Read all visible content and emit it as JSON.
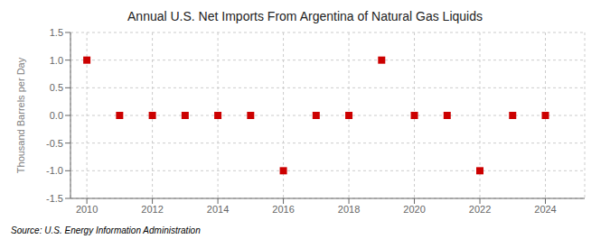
{
  "chart_data": {
    "type": "scatter",
    "title": "Annual U.S. Net Imports From Argentina of Natural Gas Liquids",
    "ylabel": "Thousand Barrels per Day",
    "annotation": "Source: U.S. Energy Information Administration",
    "x": [
      2010,
      2011,
      2012,
      2013,
      2014,
      2015,
      2016,
      2017,
      2018,
      2019,
      2020,
      2021,
      2022,
      2023,
      2024
    ],
    "values": [
      1.0,
      0.0,
      0.0,
      0.0,
      0.0,
      0.0,
      -1.0,
      0.0,
      0.0,
      1.0,
      0.0,
      0.0,
      -1.0,
      0.0,
      0.0
    ],
    "color": "#cc0000",
    "marker": "square",
    "xlim": [
      2009.5,
      2025.2
    ],
    "xticks": [
      2010,
      2012,
      2014,
      2016,
      2018,
      2020,
      2022,
      2024
    ],
    "ylim": [
      -1.5,
      1.5
    ],
    "yticks": [
      -1.5,
      {
        "value": -1.0,
        "label": "-1.0"
      },
      -0.5,
      {
        "value": 0.0,
        "label": "0.0"
      },
      0.5,
      {
        "value": 1.0,
        "label": "1.0"
      },
      1.5
    ],
    "grid": true
  }
}
